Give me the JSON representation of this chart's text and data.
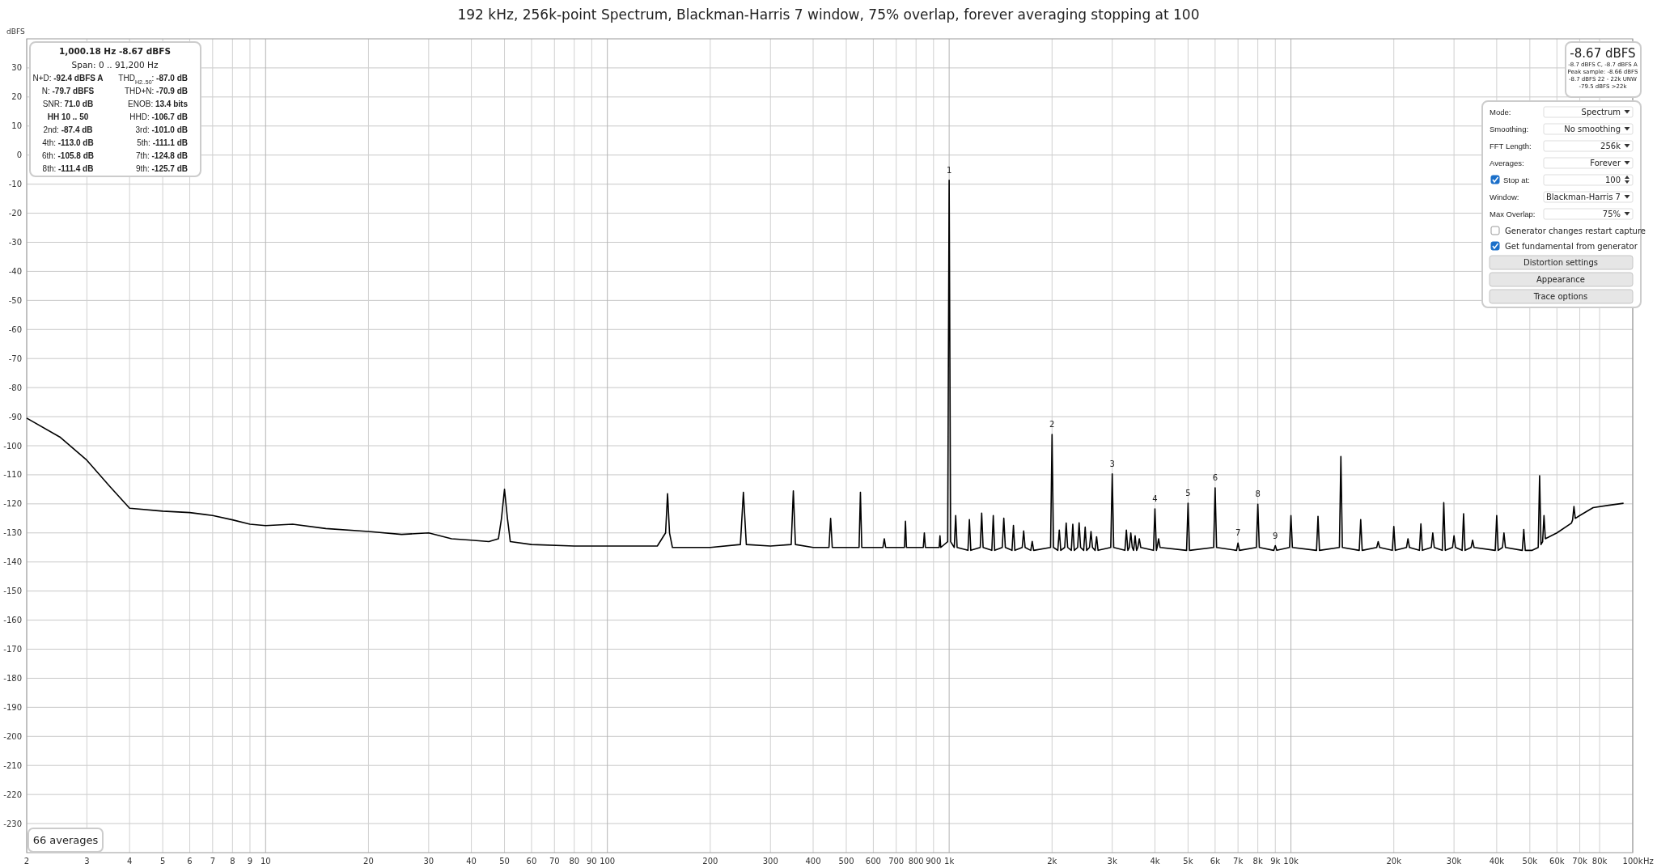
{
  "chart_data": {
    "type": "line",
    "title": "192 kHz, 256k-point Spectrum, Blackman-Harris 7 window, 75% overlap, forever averaging stopping at 100",
    "ylabel": "dBFS",
    "log": "x",
    "grid": true,
    "xlim": [
      2,
      100000
    ],
    "ylim": [
      -240,
      40
    ],
    "xticks": [
      2,
      3,
      4,
      5,
      6,
      7,
      8,
      9,
      10,
      20,
      30,
      40,
      50,
      60,
      70,
      80,
      90,
      100,
      200,
      300,
      400,
      500,
      600,
      700,
      800,
      900,
      {
        "value": 1000,
        "label": "1k"
      },
      {
        "value": 2000,
        "label": "2k"
      },
      {
        "value": 3000,
        "label": "3k"
      },
      {
        "value": 4000,
        "label": "4k"
      },
      {
        "value": 5000,
        "label": "5k"
      },
      {
        "value": 6000,
        "label": "6k"
      },
      {
        "value": 7000,
        "label": "7k"
      },
      {
        "value": 8000,
        "label": "8k"
      },
      {
        "value": 9000,
        "label": "9k"
      },
      {
        "value": 10000,
        "label": "10k"
      },
      {
        "value": 20000,
        "label": "20k"
      },
      {
        "value": 30000,
        "label": "30k"
      },
      {
        "value": 40000,
        "label": "40k"
      },
      {
        "value": 50000,
        "label": "50k"
      },
      {
        "value": 60000,
        "label": "60k"
      },
      {
        "value": 70000,
        "label": "70k"
      },
      {
        "value": 80000,
        "label": "80k"
      },
      {
        "value": 100000,
        "label": "100k"
      }
    ],
    "xlabel": "Hz",
    "yticks": [
      30,
      20,
      10,
      0,
      -10,
      -20,
      -30,
      -40,
      -50,
      -60,
      -70,
      -80,
      -90,
      -100,
      -110,
      -120,
      -130,
      -140,
      -150,
      -160,
      -170,
      -180,
      -190,
      -200,
      -210,
      -220,
      -230
    ],
    "x": [
      2,
      2.5,
      3,
      3.5,
      4,
      5,
      6,
      7,
      8,
      9,
      10,
      12,
      15,
      20,
      25,
      30,
      35,
      40,
      45,
      48,
      49,
      50,
      51,
      52,
      60,
      80,
      100,
      140,
      148,
      150,
      152,
      155,
      200,
      245,
      250,
      255,
      300,
      345,
      350,
      355,
      400,
      445,
      450,
      455,
      545,
      550,
      555,
      640,
      646,
      652,
      740,
      745,
      750,
      840,
      846,
      852,
      935,
      940,
      945,
      990,
      1000,
      1010,
      1035,
      1045,
      1055,
      1135,
      1146,
      1157,
      1233,
      1245,
      1257,
      1333,
      1346,
      1359,
      1430,
      1445,
      1460,
      1527,
      1542,
      1557,
      1636,
      1652,
      1668,
      1733,
      1750,
      1767,
      1980,
      2000,
      2020,
      2079,
      2100,
      2121,
      2178,
      2200,
      2222,
      2277,
      2300,
      2323,
      2376,
      2400,
      2424,
      2475,
      2500,
      2525,
      2574,
      2600,
      2626,
      2673,
      2700,
      2727,
      2970,
      3000,
      3030,
      3267,
      3300,
      3333,
      3366,
      3400,
      3434,
      3465,
      3500,
      3535,
      3564,
      3600,
      3636,
      3960,
      4000,
      4040,
      4059,
      4100,
      4141,
      4950,
      5000,
      5050,
      5940,
      6000,
      6060,
      6930,
      7000,
      7070,
      7920,
      8000,
      8080,
      8910,
      9000,
      9090,
      9900,
      10000,
      10100,
      11880,
      12000,
      12120,
      13860,
      14000,
      14140,
      15840,
      16000,
      16160,
      17820,
      18000,
      18180,
      19800,
      20000,
      20200,
      21780,
      22000,
      22220,
      23760,
      24000,
      24240,
      25740,
      26000,
      26260,
      27720,
      28000,
      28280,
      29700,
      30000,
      30300,
      31680,
      32000,
      32320,
      33660,
      34000,
      34340,
      39600,
      40000,
      40400,
      41580,
      42000,
      42420,
      47520,
      48000,
      48480,
      50800,
      52900,
      53400,
      53900,
      54500,
      55000,
      55500,
      60000,
      66200,
      66700,
      67300,
      67900,
      70000,
      76600,
      85000,
      94000
    ],
    "series": [
      {
        "color": "#000000",
        "values": [
          -90.5,
          -97,
          -105,
          -114,
          -121.5,
          -122.5,
          -123,
          -124,
          -125.5,
          -127,
          -127.5,
          -127,
          -128.5,
          -129.5,
          -130.5,
          -130,
          -132,
          -132.5,
          -133,
          -132,
          -125,
          -115,
          -125,
          -133,
          -134,
          -134.5,
          -134.5,
          -134.5,
          -130,
          -116.5,
          -130,
          -135,
          -135,
          -134,
          -116,
          -134,
          -134.5,
          -134,
          -115.5,
          -134,
          -135,
          -135,
          -125,
          -135,
          -135,
          -116,
          -135,
          -135,
          -132,
          -135,
          -135,
          -126,
          -135,
          -135,
          -130,
          -135,
          -135,
          -131,
          -135,
          -133,
          -8.67,
          -133,
          -135,
          -124,
          -135,
          -136,
          -125.4,
          -136,
          -135,
          -123.2,
          -135,
          -136,
          -124,
          -136,
          -135,
          -124.9,
          -135,
          -136,
          -127.4,
          -136,
          -135,
          -129.3,
          -135,
          -136,
          -132.9,
          -136,
          -135,
          -96.1,
          -135,
          -136,
          -129,
          -136,
          -135,
          -126.6,
          -135,
          -136,
          -127,
          -136,
          -135,
          -126.5,
          -135,
          -136,
          -128,
          -136,
          -135,
          -129.5,
          -135,
          -136,
          -131.3,
          -136,
          -135,
          -109.7,
          -135,
          -136,
          -129,
          -136,
          -135,
          -130,
          -135,
          -136,
          -131,
          -136,
          -135,
          -132,
          -135,
          -136,
          -121.7,
          -136,
          -135,
          -132,
          -135,
          -136,
          -119.8,
          -136,
          -135,
          -114.5,
          -135,
          -136,
          -133.5,
          -136,
          -135,
          -120.1,
          -135,
          -136,
          -134.4,
          -136,
          -135,
          -124,
          -135,
          -136,
          -124.3,
          -136,
          -135,
          -103.7,
          -135,
          -136,
          -125.4,
          -136,
          -135,
          -133,
          -135,
          -136,
          -127.8,
          -136,
          -135,
          -132,
          -135,
          -136,
          -126.9,
          -136,
          -135,
          -130,
          -135,
          -136,
          -119.6,
          -136,
          -135,
          -131,
          -135,
          -136,
          -123.4,
          -136,
          -135,
          -132.5,
          -135,
          -136,
          -124,
          -136,
          -135,
          -130,
          -135,
          -136,
          -128.8,
          -136,
          -136,
          -135,
          -110.3,
          -134,
          -133,
          -124,
          -132,
          -130,
          -126.6,
          -125.5,
          -120.9,
          -125,
          -124,
          -121.3,
          -120.5,
          -119.8
        ]
      }
    ],
    "annotations": [
      "1,000.18 Hz  -8.67 dBFS",
      "Span: 0 .. 91,200 Hz",
      "N+D: -92.4 dBFS A",
      "THD$_{H2..50}$: -87.0 dB",
      "N: -79.7 dBFS",
      "THD+N: -70.9 dB",
      "SNR:  71.0 dB",
      "ENOB:  13.4 bits",
      "HH 10 .. 50",
      "HHD: -106.7 dB",
      "2nd: -87.4 dB",
      "3rd: -101.0 dB",
      "4th: -113.0 dB",
      "5th: -111.1 dB",
      "6th: -105.8 dB",
      "7th: -124.8 dB",
      "8th: -111.4 dB",
      "9th: -125.7 dB",
      "-8.67 dBFS",
      "-8.7 dBFS C, -8.7 dBFS A",
      "Peak sample: -8.66 dBFS",
      "-8.7 dBFS 22 - 22k UNW",
      "-79.5 dBFS >22k",
      "Mode:",
      "Spectrum",
      "Smoothing:",
      "No smoothing",
      "FFT Length:",
      "256k",
      "Averages:",
      "Forever",
      "Stop at:",
      "100",
      "Window:",
      "Blackman-Harris 7",
      "Max Overlap:",
      "75%",
      "Generator changes restart capture",
      "Get fundamental from generator",
      "Distortion settings",
      "Appearance",
      "Trace options",
      "66 averages",
      {
        "text": "1",
        "x": 1000,
        "y": -8.67
      },
      {
        "text": "2",
        "x": 2000,
        "y": -96.1
      },
      {
        "text": "3",
        "x": 3000,
        "y": -109.7
      },
      {
        "text": "4",
        "x": 4000,
        "y": -121.7
      },
      {
        "text": "5",
        "x": 5000,
        "y": -119.8
      },
      {
        "text": "6",
        "x": 6000,
        "y": -114.5
      },
      {
        "text": "7",
        "x": 7000,
        "y": -133.5
      },
      {
        "text": "8",
        "x": 8000,
        "y": -120.1
      },
      {
        "text": "9",
        "x": 9000,
        "y": -134.4
      }
    ]
  }
}
